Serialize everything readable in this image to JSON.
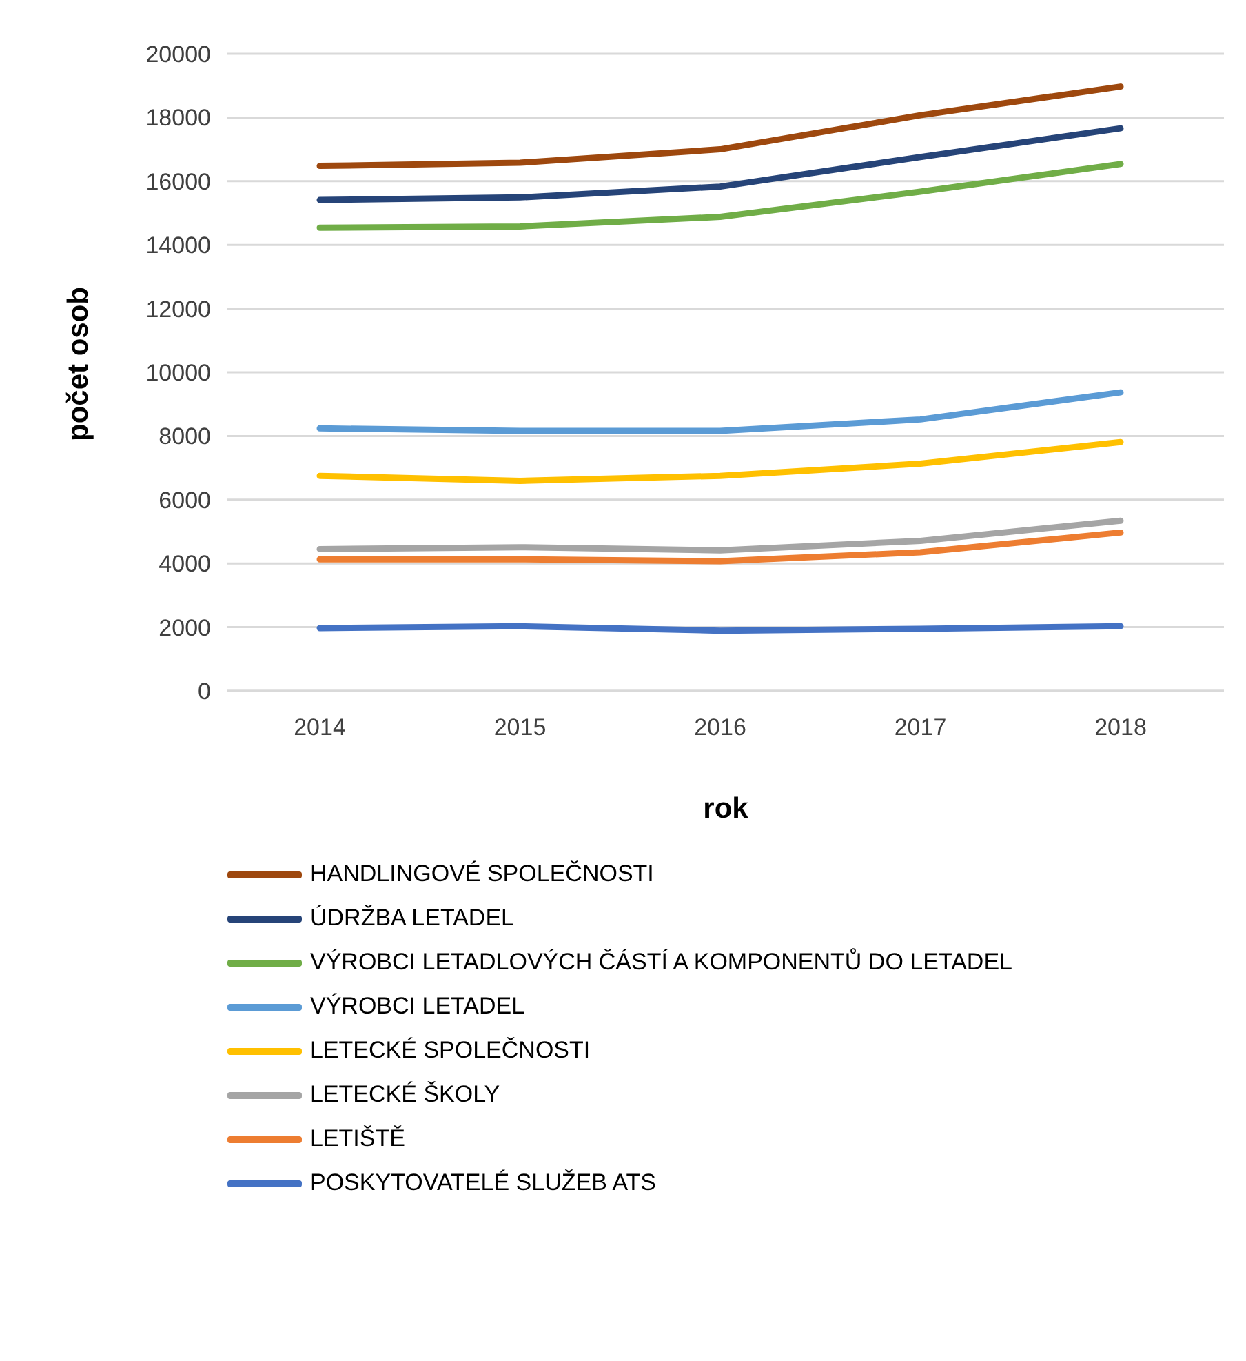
{
  "chart_data": {
    "type": "line",
    "xlabel": "rok",
    "ylabel": "počet osob",
    "categories": [
      "2014",
      "2015",
      "2016",
      "2017",
      "2018"
    ],
    "ylim": [
      0,
      20000
    ],
    "yticks": [
      0,
      2000,
      4000,
      6000,
      8000,
      10000,
      12000,
      14000,
      16000,
      18000,
      20000
    ],
    "grid": "y",
    "legend": "bottom",
    "line_style": "solid",
    "series": [
      {
        "name": "HANDLINGOVÉ SPOLEČNOSTI",
        "color": "#9e480e",
        "values": [
          16480,
          16580,
          17000,
          18070,
          18970
        ]
      },
      {
        "name": "ÚDRŽBA LETADEL",
        "color": "#264478",
        "values": [
          15410,
          15490,
          15830,
          16760,
          17660
        ]
      },
      {
        "name": "VÝROBCI LETADLOVÝCH ČÁSTÍ A KOMPONENTŮ DO LETADEL",
        "color": "#70ad47",
        "values": [
          14540,
          14580,
          14880,
          15670,
          16540
        ]
      },
      {
        "name": "VÝROBCI LETADEL",
        "color": "#5b9bd5",
        "values": [
          8240,
          8160,
          8160,
          8520,
          9370
        ]
      },
      {
        "name": "LETECKÉ SPOLEČNOSTI",
        "color": "#ffc000",
        "values": [
          6750,
          6590,
          6750,
          7130,
          7810
        ]
      },
      {
        "name": "LETECKÉ ŠKOLY",
        "color": "#a5a5a5",
        "values": [
          4450,
          4510,
          4410,
          4710,
          5340
        ]
      },
      {
        "name": "LETIŠTĚ",
        "color": "#ed7d31",
        "values": [
          4130,
          4130,
          4070,
          4350,
          4970
        ]
      },
      {
        "name": "POSKYTOVATELÉ SLUŽEB ATS",
        "color": "#4472c4",
        "values": [
          1970,
          2030,
          1890,
          1950,
          2030
        ]
      }
    ]
  }
}
